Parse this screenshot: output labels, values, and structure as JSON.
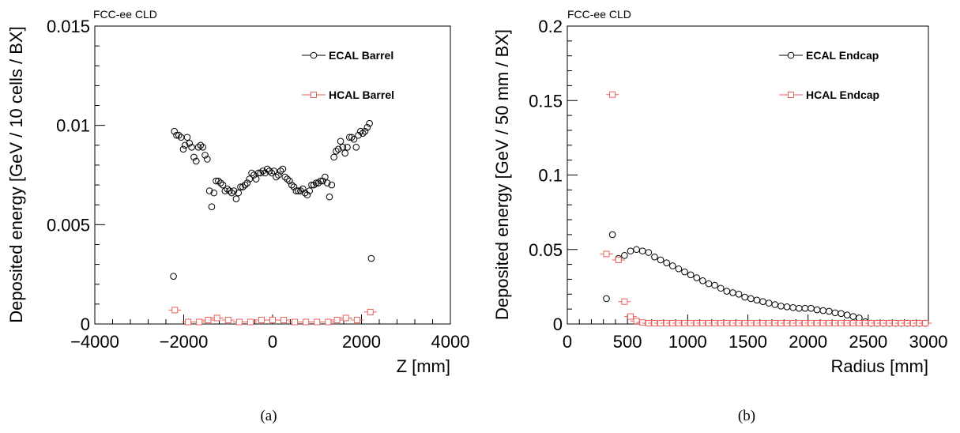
{
  "experiment_label": "FCC-ee CLD",
  "captions": [
    "(a)",
    "(b)"
  ],
  "colors": {
    "ecal": "#000000",
    "hcal": "#e8625c"
  },
  "chart_data": [
    {
      "type": "scatter",
      "title": "",
      "xlabel": "Z [mm]",
      "ylabel": "Deposited energy [GeV / 10 cells / BX]",
      "xlim": [
        -4000,
        4000
      ],
      "ylim": [
        0,
        0.015
      ],
      "xticks": [
        -4000,
        -2000,
        0,
        2000,
        4000
      ],
      "xtick_labels": [
        "−4000",
        "−2000",
        "0",
        "2000",
        "4000"
      ],
      "yticks": [
        0,
        0.005,
        0.01,
        0.015
      ],
      "ytick_labels": [
        "0",
        "0.005",
        "0.01",
        "0.015"
      ],
      "legend_placement": "top-right",
      "series": [
        {
          "name": "ECAL Barrel",
          "marker": "circle",
          "color": "#000000",
          "x": [
            -2230,
            -2210,
            -2160,
            -2110,
            -2060,
            -2010,
            -1970,
            -1920,
            -1870,
            -1820,
            -1770,
            -1720,
            -1670,
            -1620,
            -1570,
            -1520,
            -1470,
            -1420,
            -1370,
            -1320,
            -1270,
            -1220,
            -1170,
            -1120,
            -1070,
            -1020,
            -970,
            -920,
            -870,
            -820,
            -770,
            -720,
            -670,
            -620,
            -570,
            -520,
            -470,
            -420,
            -370,
            -320,
            -270,
            -220,
            -170,
            -120,
            -70,
            -20,
            30,
            80,
            130,
            180,
            230,
            280,
            330,
            380,
            430,
            480,
            530,
            580,
            630,
            680,
            730,
            780,
            830,
            880,
            930,
            980,
            1030,
            1080,
            1130,
            1180,
            1230,
            1280,
            1330,
            1380,
            1430,
            1480,
            1530,
            1580,
            1630,
            1680,
            1730,
            1780,
            1830,
            1880,
            1930,
            1980,
            2030,
            2080,
            2130,
            2180,
            2220
          ],
          "y": [
            0.0024,
            0.0097,
            0.0095,
            0.0095,
            0.0094,
            0.0088,
            0.009,
            0.0094,
            0.0091,
            0.0089,
            0.0084,
            0.0082,
            0.0089,
            0.009,
            0.0089,
            0.0085,
            0.0083,
            0.0067,
            0.0059,
            0.0066,
            0.0072,
            0.0072,
            0.0071,
            0.007,
            0.0067,
            0.0068,
            0.0067,
            0.0066,
            0.0067,
            0.0063,
            0.0066,
            0.0069,
            0.0069,
            0.007,
            0.0071,
            0.0073,
            0.0076,
            0.0075,
            0.0073,
            0.0076,
            0.0076,
            0.0077,
            0.0076,
            0.0078,
            0.0077,
            0.0076,
            0.0077,
            0.0074,
            0.0075,
            0.0077,
            0.0078,
            0.0074,
            0.0073,
            0.0072,
            0.007,
            0.0069,
            0.0067,
            0.0067,
            0.0067,
            0.0068,
            0.0066,
            0.0065,
            0.0067,
            0.007,
            0.007,
            0.0071,
            0.0071,
            0.0072,
            0.0072,
            0.0074,
            0.0071,
            0.0064,
            0.007,
            0.0084,
            0.0087,
            0.0088,
            0.0092,
            0.0089,
            0.0086,
            0.0089,
            0.0094,
            0.0094,
            0.0093,
            0.0089,
            0.0095,
            0.0097,
            0.0096,
            0.0097,
            0.0099,
            0.0101,
            0.0033
          ]
        },
        {
          "name": "HCAL Barrel",
          "marker": "open-square",
          "color": "#e8625c",
          "x": [
            -2200,
            -1900,
            -1650,
            -1450,
            -1250,
            -1000,
            -750,
            -500,
            -250,
            0,
            250,
            500,
            750,
            1000,
            1250,
            1450,
            1650,
            1900,
            2200
          ],
          "y": [
            0.0007,
            0.0001,
            0.0001,
            0.0002,
            0.0003,
            0.0002,
            0.0001,
            0.0001,
            0.0002,
            0.0002,
            0.0002,
            0.0001,
            0.0001,
            0.0001,
            0.0001,
            0.0002,
            0.0003,
            0.0002,
            0.0006
          ]
        }
      ]
    },
    {
      "type": "scatter",
      "title": "",
      "xlabel": "Radius [mm]",
      "ylabel": "Deposited energy [GeV / 50 mm / BX]",
      "xlim": [
        0,
        3000
      ],
      "ylim": [
        0,
        0.2
      ],
      "xticks": [
        0,
        500,
        1000,
        1500,
        2000,
        2500,
        3000
      ],
      "xtick_labels": [
        "0",
        "500",
        "1000",
        "1500",
        "2000",
        "2500",
        "3000"
      ],
      "yticks": [
        0,
        0.05,
        0.1,
        0.15,
        0.2
      ],
      "ytick_labels": [
        "0",
        "0.05",
        "0.1",
        "0.15",
        "0.2"
      ],
      "legend_placement": "top-right",
      "series": [
        {
          "name": "ECAL Endcap",
          "marker": "circle",
          "color": "#000000",
          "x": [
            325,
            375,
            425,
            475,
            525,
            575,
            625,
            675,
            725,
            775,
            825,
            875,
            925,
            975,
            1025,
            1075,
            1125,
            1175,
            1225,
            1275,
            1325,
            1375,
            1425,
            1475,
            1525,
            1575,
            1625,
            1675,
            1725,
            1775,
            1825,
            1875,
            1925,
            1975,
            2025,
            2075,
            2125,
            2175,
            2225,
            2275,
            2325,
            2375,
            2425,
            2475,
            2525,
            2575,
            2625,
            2675,
            2725,
            2775,
            2825,
            2875,
            2925,
            2975
          ],
          "y": [
            0.017,
            0.06,
            0.044,
            0.046,
            0.049,
            0.05,
            0.049,
            0.048,
            0.045,
            0.043,
            0.041,
            0.039,
            0.037,
            0.035,
            0.033,
            0.031,
            0.029,
            0.027,
            0.026,
            0.024,
            0.022,
            0.021,
            0.02,
            0.018,
            0.017,
            0.016,
            0.015,
            0.014,
            0.013,
            0.012,
            0.0115,
            0.011,
            0.0105,
            0.0105,
            0.0105,
            0.0095,
            0.009,
            0.0085,
            0.0075,
            0.007,
            0.006,
            0.005,
            0.004,
            0.0015,
            0.0005,
            0.0005,
            0.0005,
            0.0005,
            0.0005,
            0.0005,
            0.0005,
            0.0005,
            0.0005,
            0.0005
          ]
        },
        {
          "name": "HCAL Endcap",
          "marker": "open-square",
          "color": "#e8625c",
          "x": [
            325,
            375,
            425,
            475,
            525,
            575,
            625,
            675,
            725,
            775,
            825,
            875,
            925,
            975,
            1025,
            1075,
            1125,
            1175,
            1225,
            1275,
            1325,
            1375,
            1425,
            1475,
            1525,
            1575,
            1625,
            1675,
            1725,
            1775,
            1825,
            1875,
            1925,
            1975,
            2025,
            2075,
            2125,
            2175,
            2225,
            2275,
            2325,
            2375,
            2425,
            2475,
            2525,
            2575,
            2625,
            2675,
            2725,
            2775,
            2825,
            2875,
            2925,
            2975
          ],
          "y": [
            0.047,
            0.154,
            0.043,
            0.015,
            0.005,
            0.002,
            0.001,
            0.0005,
            0.0005,
            0.0005,
            0.0005,
            0.0005,
            0.0005,
            0.0005,
            0.0005,
            0.0005,
            0.0005,
            0.0005,
            0.0005,
            0.0005,
            0.0005,
            0.0005,
            0.0005,
            0.0005,
            0.0005,
            0.0005,
            0.0005,
            0.0005,
            0.0005,
            0.0005,
            0.0005,
            0.0005,
            0.0005,
            0.0005,
            0.0005,
            0.0005,
            0.0005,
            0.0005,
            0.0005,
            0.0005,
            0.0005,
            0.0005,
            0.0005,
            0.0005,
            0.0005,
            0.0005,
            0.0005,
            0.0005,
            0.0005,
            0.0005,
            0.0005,
            0.0005,
            0.0005,
            0.0005
          ]
        }
      ]
    }
  ]
}
